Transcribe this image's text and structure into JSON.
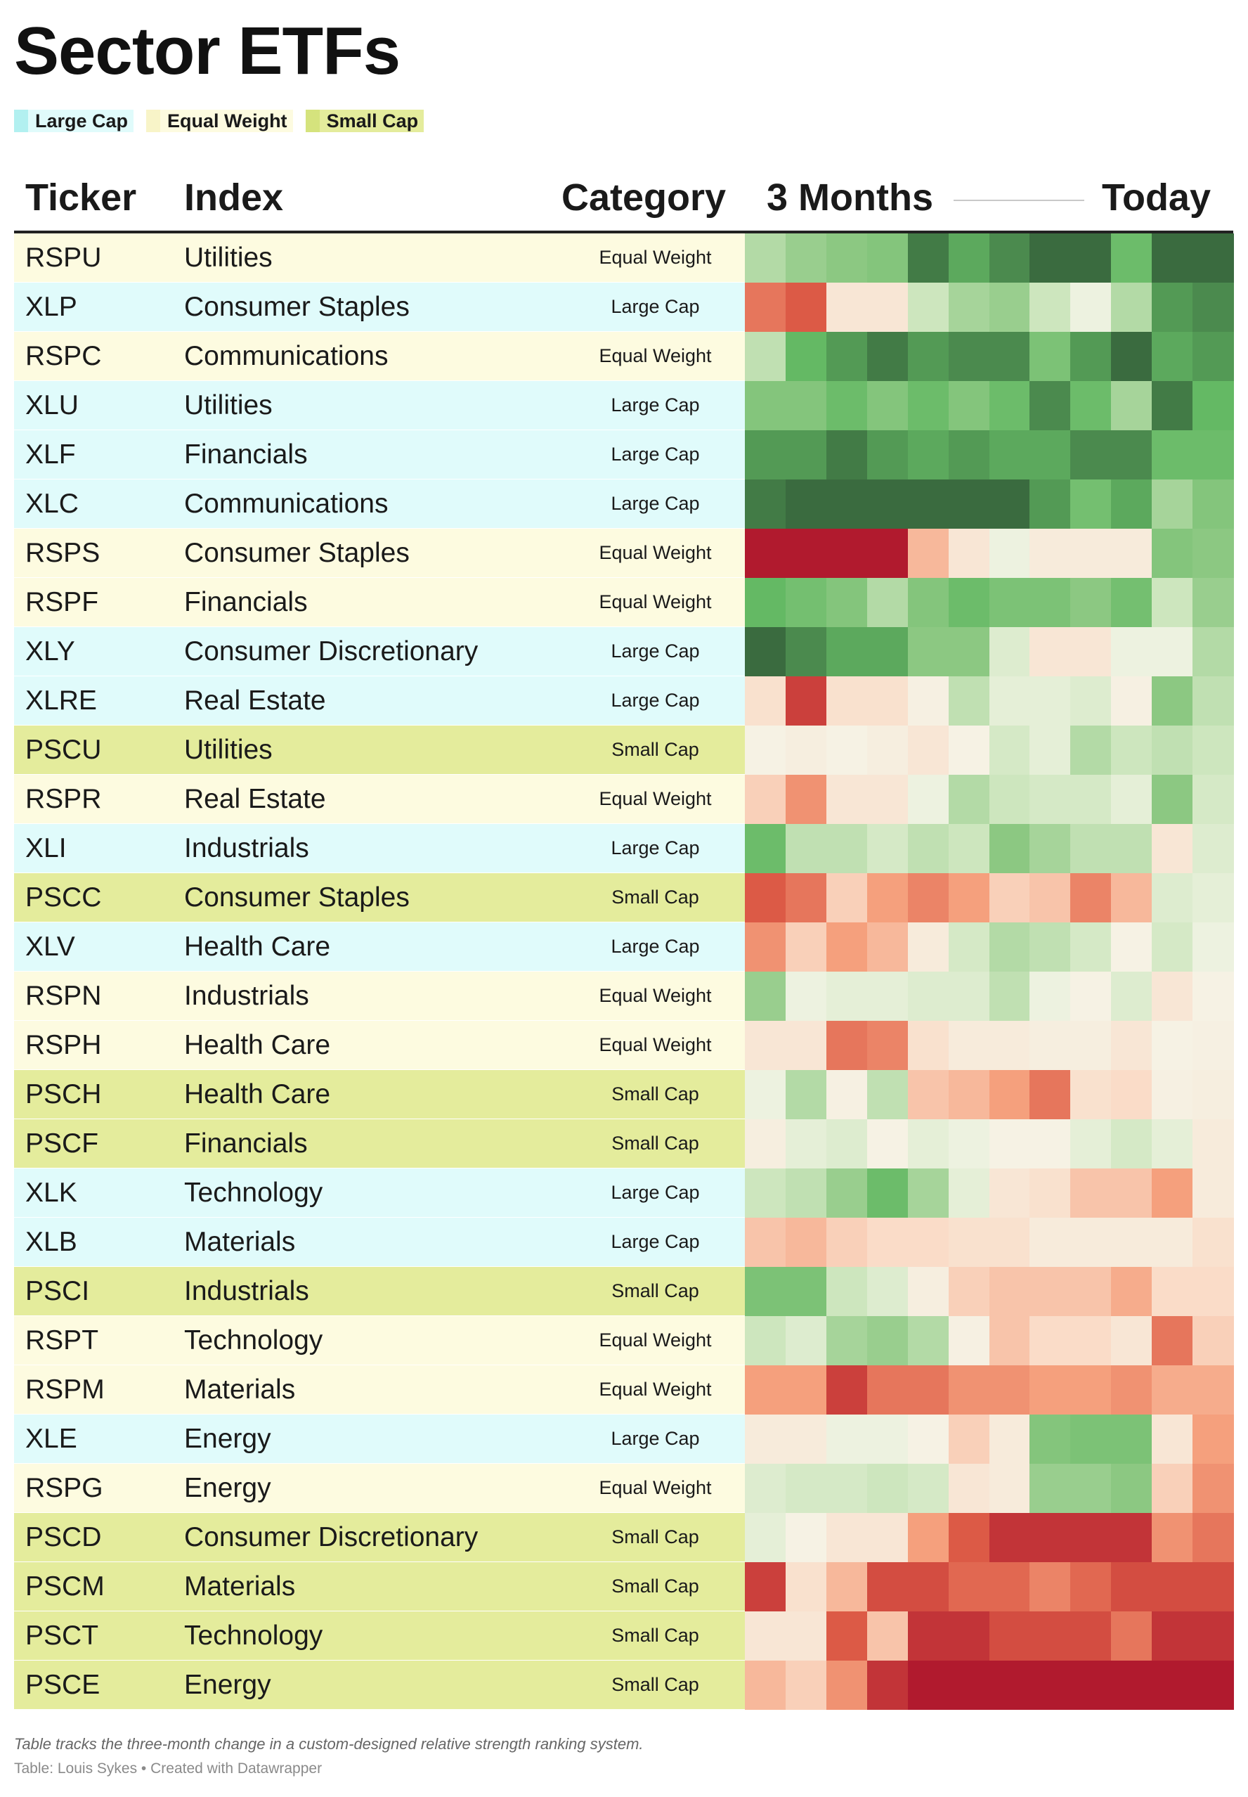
{
  "title": "Sector ETFs",
  "legend": [
    {
      "label": "Large Cap",
      "color": "#b2f0f0",
      "row_color": "#e0fbfb"
    },
    {
      "label": "Equal Weight",
      "color": "#f8f4c8",
      "row_color": "#fdfbe0"
    },
    {
      "label": "Small Cap",
      "color": "#d5e37d",
      "row_color": "#e4ec9c"
    }
  ],
  "columns": {
    "ticker": "Ticker",
    "index": "Index",
    "category": "Category",
    "start": "3 Months",
    "end": "Today"
  },
  "footer": {
    "note": "Table tracks the three-month change in a custom-designed relative strength ranking system.",
    "credit": "Table: Louis Sykes • Created with Datawrapper"
  },
  "chart_data": {
    "type": "heatmap",
    "scale": {
      "low_color": "#b11a2e",
      "mid_color": "#f5f5e8",
      "high_color": "#3a6b3f",
      "min": -1,
      "max": 1
    },
    "rows": [
      {
        "ticker": "RSPU",
        "index": "Utilities",
        "category": "Equal Weight",
        "values": [
          0.35,
          0.45,
          0.5,
          0.55,
          0.95,
          0.8,
          0.9,
          1.0,
          1.0,
          0.7,
          1.0,
          1.0
        ]
      },
      {
        "ticker": "XLP",
        "index": "Consumer Staples",
        "category": "Large Cap",
        "values": [
          -0.65,
          -0.75,
          -0.15,
          -0.15,
          0.25,
          0.4,
          0.45,
          0.25,
          0.05,
          0.35,
          0.85,
          0.9
        ]
      },
      {
        "ticker": "RSPC",
        "index": "Communications",
        "category": "Equal Weight",
        "values": [
          0.3,
          0.75,
          0.85,
          0.95,
          0.85,
          0.9,
          0.9,
          0.6,
          0.85,
          1.0,
          0.8,
          0.85
        ]
      },
      {
        "ticker": "XLU",
        "index": "Utilities",
        "category": "Large Cap",
        "values": [
          0.55,
          0.55,
          0.7,
          0.55,
          0.7,
          0.55,
          0.7,
          0.9,
          0.7,
          0.4,
          0.95,
          0.75
        ]
      },
      {
        "ticker": "XLF",
        "index": "Financials",
        "category": "Large Cap",
        "values": [
          0.85,
          0.85,
          0.95,
          0.85,
          0.8,
          0.85,
          0.8,
          0.8,
          0.9,
          0.9,
          0.7,
          0.7
        ]
      },
      {
        "ticker": "XLC",
        "index": "Communications",
        "category": "Large Cap",
        "values": [
          0.95,
          1.0,
          1.0,
          1.0,
          1.0,
          1.0,
          1.0,
          0.85,
          0.65,
          0.8,
          0.4,
          0.55
        ]
      },
      {
        "ticker": "RSPS",
        "index": "Consumer Staples",
        "category": "Equal Weight",
        "values": [
          -1.0,
          -1.0,
          -1.0,
          -1.0,
          -0.4,
          -0.15,
          0.05,
          -0.1,
          -0.1,
          -0.1,
          0.55,
          0.5
        ]
      },
      {
        "ticker": "RSPF",
        "index": "Financials",
        "category": "Equal Weight",
        "values": [
          0.75,
          0.65,
          0.55,
          0.35,
          0.55,
          0.7,
          0.6,
          0.6,
          0.5,
          0.65,
          0.25,
          0.45
        ]
      },
      {
        "ticker": "XLY",
        "index": "Consumer Discretionary",
        "category": "Large Cap",
        "values": [
          1.0,
          0.9,
          0.8,
          0.8,
          0.5,
          0.5,
          0.15,
          -0.15,
          -0.15,
          0.05,
          0.05,
          0.35
        ]
      },
      {
        "ticker": "XLRE",
        "index": "Real Estate",
        "category": "Large Cap",
        "values": [
          -0.2,
          -0.85,
          -0.2,
          -0.2,
          -0.05,
          0.3,
          0.1,
          0.1,
          0.15,
          -0.05,
          0.5,
          0.3
        ]
      },
      {
        "ticker": "PSCU",
        "index": "Utilities",
        "category": "Small Cap",
        "values": [
          -0.03,
          -0.07,
          -0.03,
          -0.07,
          -0.15,
          -0.03,
          0.2,
          0.1,
          0.35,
          0.25,
          0.3,
          0.25
        ]
      },
      {
        "ticker": "RSPR",
        "index": "Real Estate",
        "category": "Equal Weight",
        "values": [
          -0.3,
          -0.55,
          -0.15,
          -0.15,
          0.05,
          0.35,
          0.25,
          0.2,
          0.2,
          0.1,
          0.5,
          0.2
        ]
      },
      {
        "ticker": "XLI",
        "index": "Industrials",
        "category": "Large Cap",
        "values": [
          0.7,
          0.3,
          0.3,
          0.2,
          0.3,
          0.25,
          0.5,
          0.4,
          0.3,
          0.3,
          -0.15,
          0.15
        ]
      },
      {
        "ticker": "PSCC",
        "index": "Consumer Staples",
        "category": "Small Cap",
        "values": [
          -0.75,
          -0.65,
          -0.3,
          -0.5,
          -0.6,
          -0.5,
          -0.3,
          -0.35,
          -0.6,
          -0.4,
          0.15,
          0.1
        ]
      },
      {
        "ticker": "XLV",
        "index": "Health Care",
        "category": "Large Cap",
        "values": [
          -0.55,
          -0.3,
          -0.5,
          -0.4,
          -0.1,
          0.2,
          0.35,
          0.3,
          0.2,
          -0.03,
          0.2,
          0.05
        ]
      },
      {
        "ticker": "RSPN",
        "index": "Industrials",
        "category": "Equal Weight",
        "values": [
          0.45,
          0.05,
          0.1,
          0.1,
          0.15,
          0.15,
          0.3,
          0.05,
          -0.03,
          0.15,
          -0.15,
          -0.03
        ]
      },
      {
        "ticker": "RSPH",
        "index": "Health Care",
        "category": "Equal Weight",
        "values": [
          -0.15,
          -0.15,
          -0.65,
          -0.6,
          -0.2,
          -0.1,
          -0.1,
          -0.07,
          -0.07,
          -0.15,
          -0.03,
          -0.05
        ]
      },
      {
        "ticker": "PSCH",
        "index": "Health Care",
        "category": "Small Cap",
        "values": [
          0.05,
          0.35,
          -0.05,
          0.3,
          -0.35,
          -0.4,
          -0.5,
          -0.65,
          -0.2,
          -0.25,
          -0.05,
          -0.07
        ]
      },
      {
        "ticker": "PSCF",
        "index": "Financials",
        "category": "Small Cap",
        "values": [
          -0.07,
          0.1,
          0.15,
          -0.03,
          0.1,
          0.05,
          -0.03,
          -0.03,
          0.1,
          0.2,
          0.1,
          -0.1
        ]
      },
      {
        "ticker": "XLK",
        "index": "Technology",
        "category": "Large Cap",
        "values": [
          0.25,
          0.3,
          0.45,
          0.7,
          0.4,
          0.1,
          -0.15,
          -0.2,
          -0.35,
          -0.35,
          -0.5,
          -0.1
        ]
      },
      {
        "ticker": "XLB",
        "index": "Materials",
        "category": "Large Cap",
        "values": [
          -0.35,
          -0.4,
          -0.3,
          -0.25,
          -0.25,
          -0.2,
          -0.2,
          -0.1,
          -0.1,
          -0.1,
          -0.1,
          -0.2
        ]
      },
      {
        "ticker": "PSCI",
        "index": "Industrials",
        "category": "Small Cap",
        "values": [
          0.6,
          0.6,
          0.25,
          0.15,
          -0.07,
          -0.3,
          -0.35,
          -0.35,
          -0.35,
          -0.45,
          -0.25,
          -0.25
        ]
      },
      {
        "ticker": "RSPT",
        "index": "Technology",
        "category": "Equal Weight",
        "values": [
          0.25,
          0.15,
          0.4,
          0.45,
          0.35,
          -0.05,
          -0.35,
          -0.25,
          -0.25,
          -0.15,
          -0.65,
          -0.3
        ]
      },
      {
        "ticker": "RSPM",
        "index": "Materials",
        "category": "Equal Weight",
        "values": [
          -0.5,
          -0.5,
          -0.85,
          -0.65,
          -0.65,
          -0.55,
          -0.55,
          -0.5,
          -0.5,
          -0.55,
          -0.45,
          -0.45
        ]
      },
      {
        "ticker": "XLE",
        "index": "Energy",
        "category": "Large Cap",
        "values": [
          -0.1,
          -0.1,
          0.05,
          0.05,
          -0.03,
          -0.3,
          -0.1,
          0.55,
          0.6,
          0.6,
          -0.15,
          -0.5
        ]
      },
      {
        "ticker": "RSPG",
        "index": "Energy",
        "category": "Equal Weight",
        "values": [
          0.15,
          0.2,
          0.2,
          0.25,
          0.2,
          -0.15,
          -0.1,
          0.45,
          0.45,
          0.5,
          -0.3,
          -0.55
        ]
      },
      {
        "ticker": "PSCD",
        "index": "Consumer Discretionary",
        "category": "Small Cap",
        "values": [
          0.1,
          -0.03,
          -0.15,
          -0.15,
          -0.5,
          -0.75,
          -0.9,
          -0.9,
          -0.9,
          -0.9,
          -0.55,
          -0.65
        ]
      },
      {
        "ticker": "PSCM",
        "index": "Materials",
        "category": "Small Cap",
        "values": [
          -0.85,
          -0.2,
          -0.4,
          -0.8,
          -0.8,
          -0.7,
          -0.7,
          -0.6,
          -0.7,
          -0.8,
          -0.8,
          -0.8
        ]
      },
      {
        "ticker": "PSCT",
        "index": "Technology",
        "category": "Small Cap",
        "values": [
          -0.15,
          -0.15,
          -0.75,
          -0.35,
          -0.9,
          -0.9,
          -0.8,
          -0.8,
          -0.8,
          -0.65,
          -0.9,
          -0.9
        ]
      },
      {
        "ticker": "PSCE",
        "index": "Energy",
        "category": "Small Cap",
        "values": [
          -0.4,
          -0.3,
          -0.55,
          -0.9,
          -1.0,
          -1.0,
          -1.0,
          -1.0,
          -1.0,
          -1.0,
          -1.0,
          -1.0
        ]
      }
    ]
  }
}
